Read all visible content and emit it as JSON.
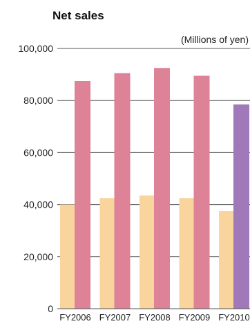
{
  "chart_data": {
    "type": "bar",
    "title": "Net sales",
    "unit_note": "(Millions of yen)",
    "categories": [
      "FY2006",
      "FY2007",
      "FY2008",
      "FY2009",
      "FY2010"
    ],
    "series": [
      {
        "values": [
          40000,
          42500,
          43500,
          42500,
          37500
        ],
        "color": "#F9D49C"
      },
      {
        "values": [
          87500,
          90500,
          92500,
          89500,
          78500
        ],
        "color": "#DD8297",
        "highlight_color": "#A07AB8",
        "highlight_index": 4
      }
    ],
    "ylim": [
      0,
      100000
    ],
    "yticks": [
      0,
      20000,
      40000,
      60000,
      80000,
      100000
    ],
    "ytick_labels": [
      "0",
      "20,000",
      "40,000",
      "60,000",
      "80,000",
      "100,000"
    ],
    "grid": true,
    "xlabel": "",
    "ylabel": ""
  }
}
